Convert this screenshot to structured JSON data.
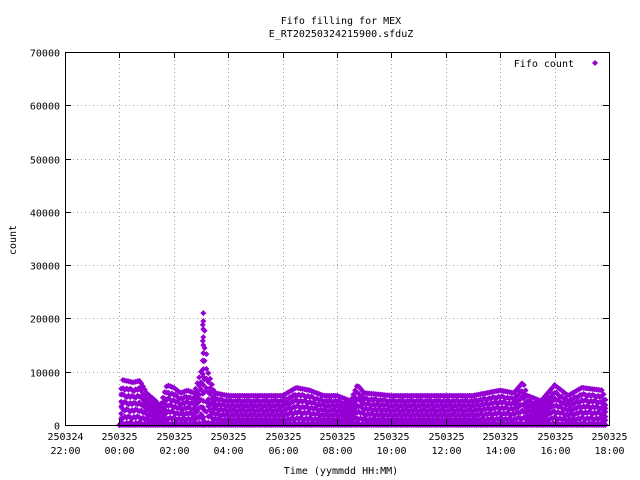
{
  "chart_data": {
    "type": "scatter",
    "title": "Fifo filling for MEX",
    "subtitle": "E_RT20250324215900.sfduZ",
    "xlabel": "Time (yymmdd HH:MM)",
    "ylabel": "count",
    "legend": {
      "label": "Fifo count",
      "position": "top-right"
    },
    "grid": true,
    "ylim": [
      0,
      70000
    ],
    "yticks": [
      "0",
      "10000",
      "20000",
      "30000",
      "40000",
      "50000",
      "60000",
      "70000"
    ],
    "xlim": [
      "2025-03-24 22:00",
      "2025-03-25 18:00"
    ],
    "xticks": [
      {
        "date": "250324",
        "time": "22:00"
      },
      {
        "date": "250325",
        "time": "00:00"
      },
      {
        "date": "250325",
        "time": "02:00"
      },
      {
        "date": "250325",
        "time": "04:00"
      },
      {
        "date": "250325",
        "time": "06:00"
      },
      {
        "date": "250325",
        "time": "08:00"
      },
      {
        "date": "250325",
        "time": "10:00"
      },
      {
        "date": "250325",
        "time": "12:00"
      },
      {
        "date": "250325",
        "time": "14:00"
      },
      {
        "date": "250325",
        "time": "16:00"
      },
      {
        "date": "250325",
        "time": "18:00"
      }
    ],
    "series": [
      {
        "name": "Fifo count",
        "color": "#9400d3",
        "marker": "diamond",
        "envelope_max": [
          [
            "2025-03-25 00:00",
            0
          ],
          [
            "2025-03-25 00:05",
            8500
          ],
          [
            "2025-03-25 00:30",
            8000
          ],
          [
            "2025-03-25 00:45",
            8300
          ],
          [
            "2025-03-25 01:00",
            6000
          ],
          [
            "2025-03-25 01:20",
            4500
          ],
          [
            "2025-03-25 01:30",
            3500
          ],
          [
            "2025-03-25 01:45",
            7500
          ],
          [
            "2025-03-25 02:00",
            7000
          ],
          [
            "2025-03-25 02:15",
            6000
          ],
          [
            "2025-03-25 02:30",
            6500
          ],
          [
            "2025-03-25 02:45",
            6000
          ],
          [
            "2025-03-25 03:00",
            10000
          ],
          [
            "2025-03-25 03:05",
            21000
          ],
          [
            "2025-03-25 03:15",
            10000
          ],
          [
            "2025-03-25 03:30",
            6000
          ],
          [
            "2025-03-25 04:00",
            5500
          ],
          [
            "2025-03-25 05:00",
            5500
          ],
          [
            "2025-03-25 06:00",
            5500
          ],
          [
            "2025-03-25 06:30",
            7000
          ],
          [
            "2025-03-25 07:00",
            6500
          ],
          [
            "2025-03-25 07:30",
            5500
          ],
          [
            "2025-03-25 08:00",
            5500
          ],
          [
            "2025-03-25 08:30",
            4500
          ],
          [
            "2025-03-25 08:45",
            7500
          ],
          [
            "2025-03-25 09:00",
            6000
          ],
          [
            "2025-03-25 10:00",
            5500
          ],
          [
            "2025-03-25 12:00",
            5500
          ],
          [
            "2025-03-25 13:00",
            5500
          ],
          [
            "2025-03-25 14:00",
            6500
          ],
          [
            "2025-03-25 14:30",
            6000
          ],
          [
            "2025-03-25 14:50",
            8000
          ],
          [
            "2025-03-25 15:00",
            5500
          ],
          [
            "2025-03-25 15:30",
            4500
          ],
          [
            "2025-03-25 16:00",
            7500
          ],
          [
            "2025-03-25 16:30",
            5500
          ],
          [
            "2025-03-25 17:00",
            7000
          ],
          [
            "2025-03-25 17:45",
            6500
          ],
          [
            "2025-03-25 17:55",
            4000
          ]
        ]
      }
    ]
  }
}
